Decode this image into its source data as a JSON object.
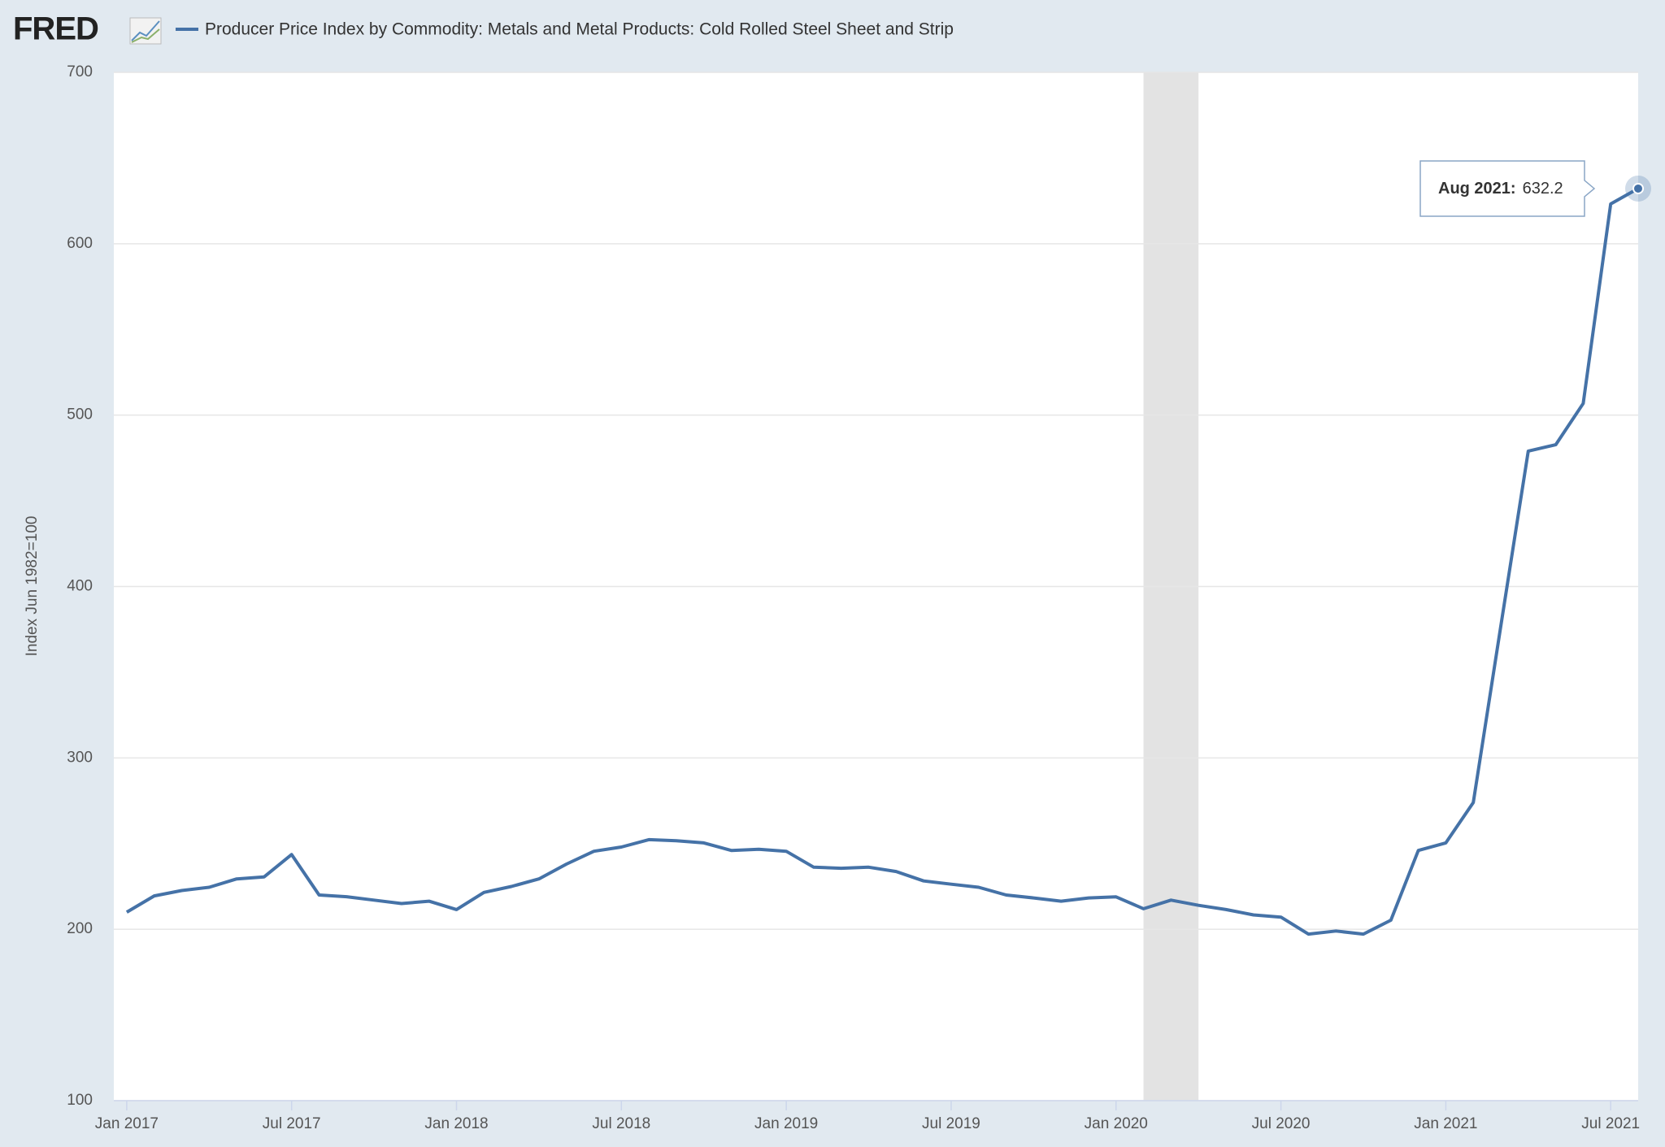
{
  "brand": "FRED",
  "chart_data": {
    "type": "line",
    "y_label": "Index Jun 1982=100",
    "x": [
      "2017-01",
      "2017-02",
      "2017-03",
      "2017-04",
      "2017-05",
      "2017-06",
      "2017-07",
      "2017-08",
      "2017-09",
      "2017-10",
      "2017-11",
      "2017-12",
      "2018-01",
      "2018-02",
      "2018-03",
      "2018-04",
      "2018-05",
      "2018-06",
      "2018-07",
      "2018-08",
      "2018-09",
      "2018-10",
      "2018-11",
      "2018-12",
      "2019-01",
      "2019-02",
      "2019-03",
      "2019-04",
      "2019-05",
      "2019-06",
      "2019-07",
      "2019-08",
      "2019-09",
      "2019-10",
      "2019-11",
      "2019-12",
      "2020-01",
      "2020-02",
      "2020-03",
      "2020-04",
      "2020-05",
      "2020-06",
      "2020-07",
      "2020-08",
      "2020-09",
      "2020-10",
      "2020-11",
      "2020-12",
      "2021-01",
      "2021-02",
      "2021-03",
      "2021-04",
      "2021-05",
      "2021-06",
      "2021-07",
      "2021-08"
    ],
    "series": [
      {
        "name": "Producer Price Index by Commodity: Metals and Metal Products: Cold Rolled Steel Sheet and Strip",
        "color": "#4572a7",
        "values": [
          210,
          219.5,
          222.6,
          224.5,
          229.4,
          230.6,
          243.6,
          220,
          219,
          217,
          215,
          216.4,
          211.5,
          221.5,
          225,
          229.4,
          238,
          245.5,
          248,
          252.3,
          251.7,
          250.4,
          246,
          246.7,
          245.5,
          236.2,
          235.6,
          236.2,
          233.7,
          228.2,
          226.3,
          224.5,
          220,
          218.3,
          216.4,
          218.3,
          218.9,
          212,
          217,
          214,
          211.5,
          208.4,
          207.1,
          197.2,
          199,
          197.2,
          205.3,
          246,
          250.4,
          274,
          376.8,
          479,
          482.7,
          506.8,
          623.2,
          632.2
        ]
      }
    ],
    "recessions": [
      {
        "start": "2020-02",
        "end": "2020-04"
      }
    ],
    "ylim": [
      100,
      700
    ],
    "yticks": [
      100,
      200,
      300,
      400,
      500,
      600,
      700
    ],
    "xticks": [
      {
        "value": "2017-01",
        "label": "Jan 2017"
      },
      {
        "value": "2017-07",
        "label": "Jul 2017"
      },
      {
        "value": "2018-01",
        "label": "Jan 2018"
      },
      {
        "value": "2018-07",
        "label": "Jul 2018"
      },
      {
        "value": "2019-01",
        "label": "Jan 2019"
      },
      {
        "value": "2019-07",
        "label": "Jul 2019"
      },
      {
        "value": "2020-01",
        "label": "Jan 2020"
      },
      {
        "value": "2020-07",
        "label": "Jul 2020"
      },
      {
        "value": "2021-01",
        "label": "Jan 2021"
      },
      {
        "value": "2021-07",
        "label": "Jul 2021"
      }
    ],
    "grid": true,
    "tooltip": {
      "label": "Aug 2021:"
    }
  }
}
